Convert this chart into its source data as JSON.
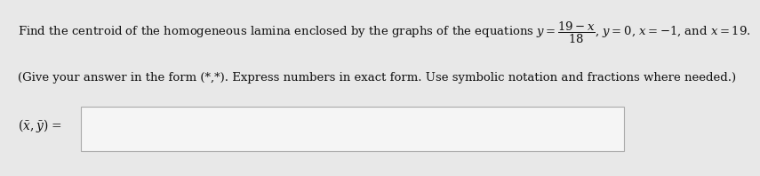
{
  "line1": "Find the centroid of the homogeneous lamina enclosed by the graphs of the equations $y = \\dfrac{19-x}{18}$, $y = 0$, $x = -1$, and $x = 19$.",
  "line2": "(Give your answer in the form (*,*). Express numbers in exact form. Use symbolic notation and fractions where needed.)",
  "label": "$(\\bar{x}, \\bar{y})$ =",
  "bg_color": "#e8e8e8",
  "box_bg": "#f5f5f5",
  "box_edge": "#aaaaaa",
  "text_color": "#111111",
  "line1_fontsize": 9.5,
  "line2_fontsize": 9.5,
  "label_fontsize": 10.0
}
